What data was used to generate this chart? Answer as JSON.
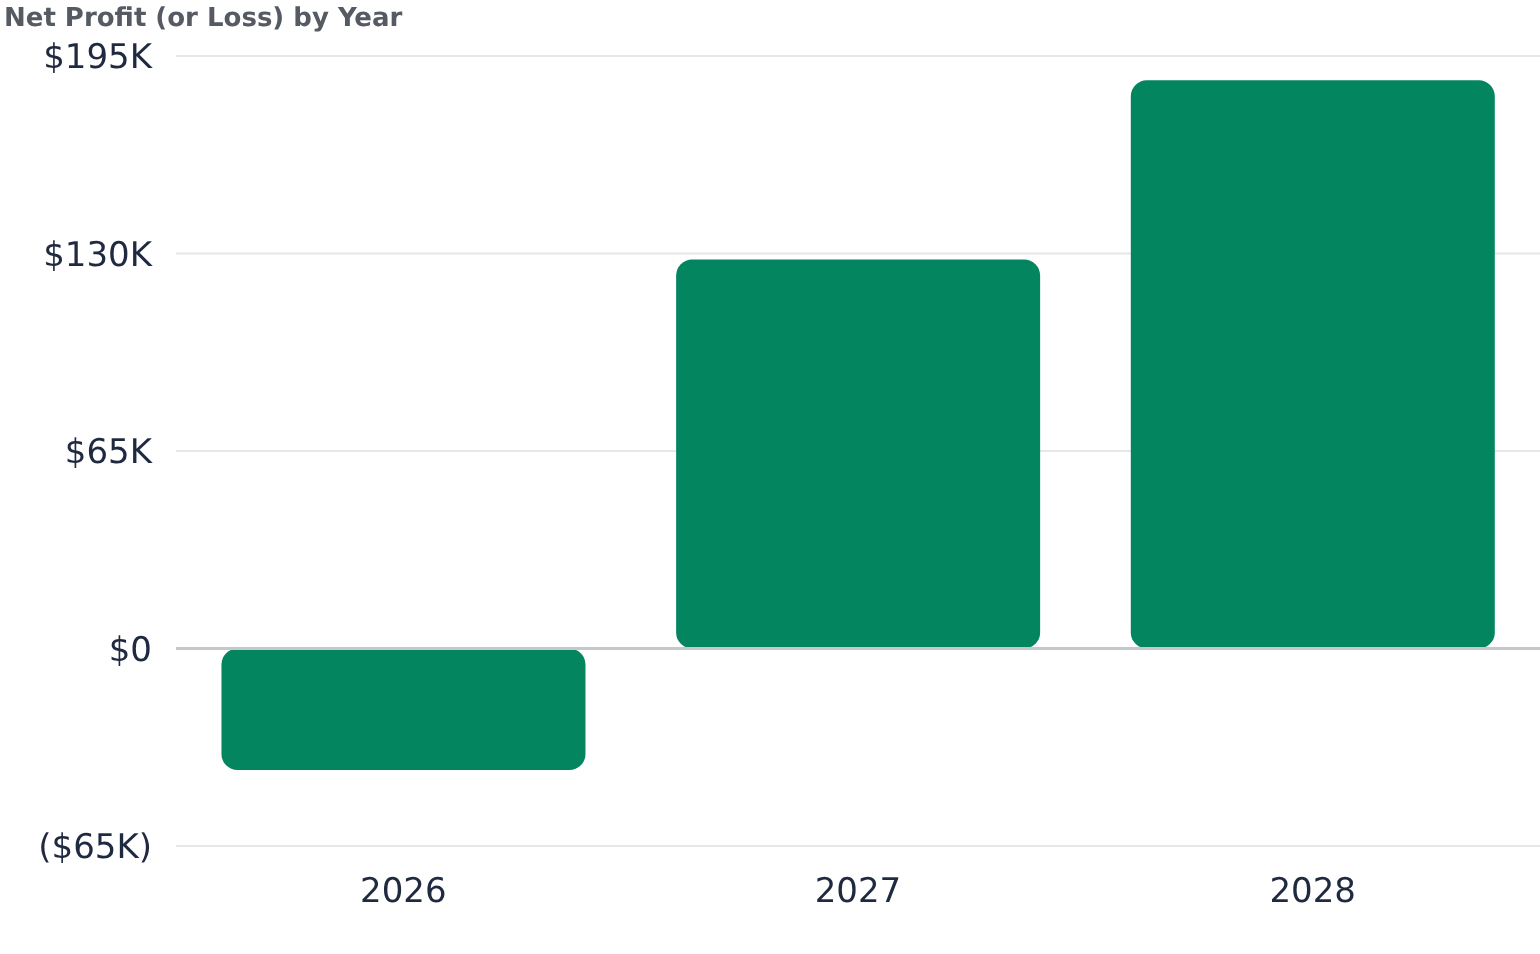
{
  "chart_data": {
    "type": "bar",
    "title": "Net Profit (or Loss) by Year",
    "categories": [
      "2026",
      "2027",
      "2028"
    ],
    "values": [
      -40000,
      128000,
      187000
    ],
    "color": "#038660",
    "ylim": [
      -65000,
      195000
    ],
    "yticks": [
      {
        "value": -65000,
        "label": "($65K)"
      },
      {
        "value": 0,
        "label": "$0"
      },
      {
        "value": 65000,
        "label": "$65K"
      },
      {
        "value": 130000,
        "label": "$130K"
      },
      {
        "value": 195000,
        "label": "$195K"
      }
    ],
    "grid": "y",
    "ref_lines": [
      {
        "axis": "y",
        "value": 0,
        "color": "#c4c7cc"
      }
    ]
  }
}
